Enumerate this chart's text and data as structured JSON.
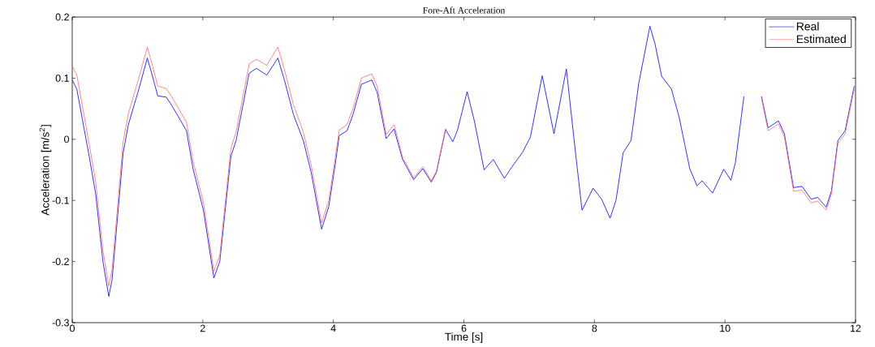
{
  "chart_data": {
    "type": "line",
    "title": "Fore-Aft Acceleration",
    "xlabel": "Time [s]",
    "ylabel": "Acceleration [m/s$^{2}$]",
    "x": [
      0,
      0.07,
      0.26,
      0.36,
      0.47,
      0.56,
      0.61,
      0.78,
      0.86,
      1.02,
      1.15,
      1.23,
      1.31,
      1.44,
      1.52,
      1.62,
      1.75,
      1.85,
      2.01,
      2.17,
      2.26,
      2.43,
      2.51,
      2.71,
      2.82,
      2.98,
      3.15,
      3.25,
      3.39,
      3.54,
      3.66,
      3.82,
      3.93,
      4.03,
      4.09,
      4.21,
      4.3,
      4.43,
      4.59,
      4.67,
      4.81,
      4.93,
      5.06,
      5.23,
      5.37,
      5.5,
      5.58,
      5.72,
      5.83,
      5.9,
      6.05,
      6.16,
      6.31,
      6.45,
      6.62,
      6.73,
      6.9,
      7.02,
      7.2,
      7.38,
      7.57,
      7.71,
      7.81,
      7.98,
      8.11,
      8.24,
      8.33,
      8.44,
      8.56,
      8.68,
      8.85,
      8.93,
      9.03,
      9.18,
      9.3,
      9.46,
      9.57,
      9.65,
      9.81,
      9.98,
      10.09,
      10.16,
      10.29,
      10.4,
      10.5,
      10.56,
      10.66,
      10.82,
      10.91,
      11.05,
      11.18,
      11.32,
      11.42,
      11.55,
      11.63,
      11.73,
      11.84,
      11.98
    ],
    "series": [
      {
        "name": "Real",
        "color": "#0000ff",
        "values": [
          0.097,
          0.082,
          -0.028,
          -0.09,
          -0.2,
          -0.257,
          -0.23,
          -0.022,
          0.024,
          0.082,
          0.133,
          0.103,
          0.071,
          0.069,
          0.056,
          0.038,
          0.014,
          -0.048,
          -0.116,
          -0.227,
          -0.2,
          -0.028,
          -0.002,
          0.108,
          0.116,
          0.105,
          0.133,
          0.097,
          0.04,
          -0.002,
          -0.054,
          -0.147,
          -0.11,
          -0.04,
          0.006,
          0.014,
          0.04,
          0.09,
          0.097,
          0.077,
          0.001,
          0.017,
          -0.033,
          -0.066,
          -0.048,
          -0.07,
          -0.054,
          0.016,
          -0.004,
          0.014,
          0.078,
          0.03,
          -0.05,
          -0.033,
          -0.064,
          -0.046,
          -0.021,
          0.004,
          0.104,
          0.009,
          0.115,
          -0.022,
          -0.116,
          -0.08,
          -0.098,
          -0.129,
          -0.1,
          -0.022,
          -0.002,
          0.092,
          0.185,
          0.155,
          0.103,
          0.082,
          0.035,
          -0.048,
          -0.076,
          -0.068,
          -0.088,
          -0.049,
          -0.067,
          -0.038,
          0.07,
          null,
          null,
          0.07,
          0.019,
          0.03,
          0.009,
          -0.079,
          -0.077,
          -0.098,
          -0.095,
          -0.111,
          -0.085,
          -0.002,
          0.014,
          0.087
        ]
      },
      {
        "name": "Estimated",
        "color": "#ff6b6b",
        "values": [
          0.12,
          0.105,
          -0.008,
          -0.07,
          -0.182,
          -0.24,
          -0.213,
          -0.004,
          0.042,
          0.1,
          0.151,
          0.12,
          0.087,
          0.083,
          0.07,
          0.052,
          0.028,
          -0.035,
          -0.104,
          -0.216,
          -0.19,
          -0.015,
          0.012,
          0.123,
          0.131,
          0.121,
          0.151,
          0.114,
          0.056,
          0.012,
          -0.042,
          -0.137,
          -0.1,
          -0.03,
          0.015,
          0.024,
          0.05,
          0.1,
          0.107,
          0.087,
          0.008,
          0.024,
          -0.029,
          -0.063,
          -0.045,
          -0.068,
          -0.052,
          0.018,
          null,
          null,
          null,
          null,
          null,
          null,
          null,
          null,
          null,
          null,
          null,
          null,
          null,
          null,
          null,
          null,
          null,
          null,
          null,
          null,
          null,
          null,
          null,
          null,
          null,
          null,
          null,
          null,
          null,
          null,
          null,
          null,
          null,
          null,
          null,
          null,
          null,
          0.067,
          0.014,
          0.025,
          0.004,
          -0.085,
          -0.083,
          -0.104,
          -0.101,
          -0.116,
          -0.09,
          -0.007,
          0.009,
          0.082
        ]
      }
    ],
    "xlim": [
      0,
      12
    ],
    "xticks": [
      0,
      2,
      4,
      6,
      8,
      10,
      12
    ],
    "ylim": [
      -0.3,
      0.2
    ],
    "yticks": [
      -0.3,
      -0.2,
      -0.1,
      0,
      0.1,
      0.2
    ],
    "grid": false,
    "legend": "top right",
    "marker": "none",
    "line_style": "solid"
  }
}
